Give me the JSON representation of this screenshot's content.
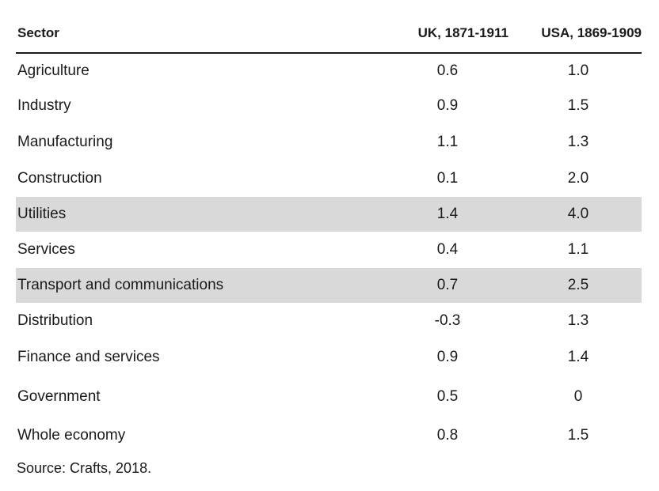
{
  "table": {
    "headers": {
      "sector": "Sector",
      "uk": "UK, 1871-1911",
      "usa": "USA, 1869-1909"
    },
    "rows": [
      {
        "sector": "Agriculture",
        "uk": "0.6",
        "usa": "1.0",
        "shaded": false
      },
      {
        "sector": "Industry",
        "uk": "0.9",
        "usa": "1.5",
        "shaded": false
      },
      {
        "sector": "Manufacturing",
        "uk": "1.1",
        "usa": "1.3",
        "shaded": false
      },
      {
        "sector": "Construction",
        "uk": "0.1",
        "usa": "2.0",
        "shaded": false
      },
      {
        "sector": "Utilities",
        "uk": "1.4",
        "usa": "4.0",
        "shaded": true
      },
      {
        "sector": "Services",
        "uk": "0.4",
        "usa": "1.1",
        "shaded": false
      },
      {
        "sector": "Transport and communications",
        "uk": "0.7",
        "usa": "2.5",
        "shaded": true
      },
      {
        "sector": "Distribution",
        "uk": "-0.3",
        "usa": "1.3",
        "shaded": false
      },
      {
        "sector": "Finance and services",
        "uk": "0.9",
        "usa": "1.4",
        "shaded": false
      },
      {
        "sector": "Government",
        "uk": "0.5",
        "usa": "0",
        "shaded": false
      },
      {
        "sector": "Whole economy",
        "uk": "0.8",
        "usa": "1.5",
        "shaded": false
      }
    ],
    "highlight_color": "#d9d9d9"
  },
  "source": "Source: Crafts, 2018."
}
